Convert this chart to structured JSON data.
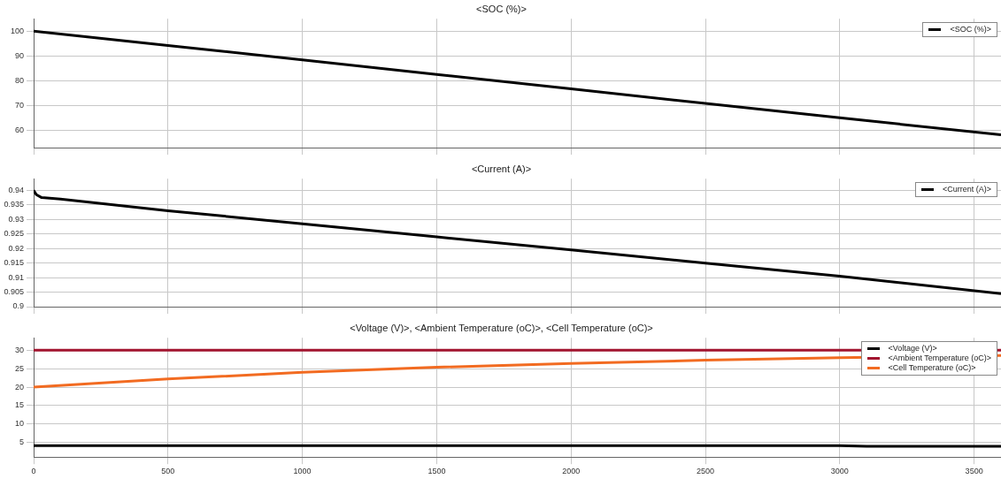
{
  "chart_data": [
    {
      "type": "line",
      "title": "<SOC (%)>",
      "x": [
        0,
        500,
        1000,
        1500,
        2000,
        2500,
        3000,
        3600
      ],
      "series": [
        {
          "name": "<SOC (%)>",
          "color": "#000000",
          "values": [
            100,
            94.2,
            88.4,
            82.5,
            76.7,
            70.8,
            65,
            58.2
          ]
        }
      ],
      "xlim": [
        0,
        3600
      ],
      "xticks": [
        0,
        500,
        1000,
        1500,
        2000,
        2500,
        3000,
        3500
      ],
      "ylim": [
        53,
        105
      ],
      "yticks": [
        60,
        70,
        80,
        90,
        100
      ],
      "tick_labels": "y",
      "grid": true,
      "legend": "top right",
      "marker": "none",
      "line_style": "solid"
    },
    {
      "type": "line",
      "title": "<Current (A)>",
      "x": [
        0,
        10,
        30,
        100,
        500,
        1000,
        1500,
        2000,
        2500,
        3000,
        3600
      ],
      "series": [
        {
          "name": "<Current (A)>",
          "color": "#000000",
          "values": [
            0.94,
            0.9385,
            0.9375,
            0.937,
            0.933,
            0.9285,
            0.924,
            0.9195,
            0.915,
            0.9105,
            0.9045
          ]
        }
      ],
      "xlim": [
        0,
        3600
      ],
      "xticks": [
        0,
        500,
        1000,
        1500,
        2000,
        2500,
        3000,
        3500
      ],
      "ylim": [
        0.9,
        0.944
      ],
      "yticks": [
        0.9,
        0.905,
        0.91,
        0.915,
        0.92,
        0.925,
        0.93,
        0.935,
        0.94
      ],
      "tick_labels": "y",
      "grid": true,
      "legend": "top right",
      "marker": "none",
      "line_style": "solid"
    },
    {
      "type": "line",
      "title": "<Voltage (V)>, <Ambient Temperature (oC)>, <Cell Temperature (oC)>",
      "x": [
        0,
        500,
        1000,
        1500,
        2000,
        2500,
        3000,
        3600
      ],
      "series": [
        {
          "name": "<Voltage (V)>",
          "color": "#000000",
          "x": [
            0,
            500,
            1000,
            1500,
            2000,
            2500,
            3000,
            3100,
            3600
          ],
          "values": [
            4.1,
            4.1,
            4.1,
            4.1,
            4.1,
            4.1,
            4.1,
            3.9,
            3.9
          ]
        },
        {
          "name": "<Ambient Temperature (oC)>",
          "color": "#a2142f",
          "values": [
            30,
            30,
            30,
            30,
            30,
            30,
            30,
            30
          ]
        },
        {
          "name": "<Cell Temperature (oC)>",
          "color": "#f26b21",
          "values": [
            20,
            22.2,
            24,
            25.4,
            26.4,
            27.3,
            28,
            28.6
          ]
        }
      ],
      "xlim": [
        0,
        3600
      ],
      "xticks": [
        0,
        500,
        1000,
        1500,
        2000,
        2500,
        3000,
        3500
      ],
      "ylim": [
        1,
        33.4
      ],
      "yticks": [
        5,
        10,
        15,
        20,
        25,
        30
      ],
      "grid": true,
      "legend": "top right",
      "marker": "none",
      "line_style": "solid"
    }
  ]
}
